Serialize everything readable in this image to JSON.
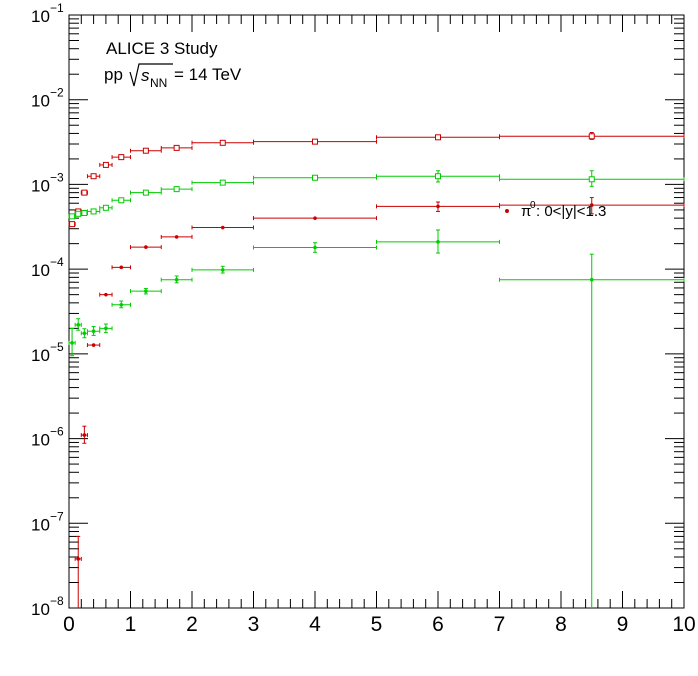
{
  "header": {
    "study": "ALICE 3 Study",
    "energy_prefix": "pp",
    "energy_s": "s",
    "energy_sub": "NN",
    "energy_suffix": "= 14 TeV"
  },
  "legend": {
    "symbol": "π",
    "symbol_sup": "0",
    "text": ":  0<|y|<1.3"
  },
  "chart_data": {
    "type": "scatter",
    "title": "",
    "xlabel": "",
    "ylabel": "",
    "xlim": [
      0,
      10
    ],
    "ylim": [
      1e-08,
      0.1
    ],
    "yscale": "log",
    "grid": false,
    "legend_position": "right-middle",
    "x_ticks": [
      "0",
      "1",
      "2",
      "3",
      "4",
      "5",
      "6",
      "7",
      "8",
      "9",
      "10"
    ],
    "y_ticks": [
      {
        "base": "10",
        "exp": "−1",
        "value": 0.1
      },
      {
        "base": "10",
        "exp": "−2",
        "value": 0.01
      },
      {
        "base": "10",
        "exp": "−3",
        "value": 0.001
      },
      {
        "base": "10",
        "exp": "−4",
        "value": 0.0001
      },
      {
        "base": "10",
        "exp": "−5",
        "value": 1e-05
      },
      {
        "base": "10",
        "exp": "−6",
        "value": 1e-06
      },
      {
        "base": "10",
        "exp": "−7",
        "value": 1e-07
      },
      {
        "base": "10",
        "exp": "−8",
        "value": 1e-08
      }
    ],
    "series": [
      {
        "color": "#cc0000",
        "marker": "open-square",
        "points": [
          {
            "x": 0.05,
            "xlo": 0.0,
            "xhi": 0.1,
            "y": 0.00034
          },
          {
            "x": 0.15,
            "xlo": 0.1,
            "xhi": 0.2,
            "y": 0.00048
          },
          {
            "x": 0.25,
            "xlo": 0.2,
            "xhi": 0.3,
            "y": 0.0008
          },
          {
            "x": 0.4,
            "xlo": 0.3,
            "xhi": 0.5,
            "y": 0.00125
          },
          {
            "x": 0.6,
            "xlo": 0.5,
            "xhi": 0.7,
            "y": 0.0017
          },
          {
            "x": 0.85,
            "xlo": 0.7,
            "xhi": 1.0,
            "y": 0.0021
          },
          {
            "x": 1.25,
            "xlo": 1.0,
            "xhi": 1.5,
            "y": 0.0025
          },
          {
            "x": 1.75,
            "xlo": 1.5,
            "xhi": 2.0,
            "y": 0.0027
          },
          {
            "x": 2.5,
            "xlo": 2.0,
            "xhi": 3.0,
            "y": 0.0031
          },
          {
            "x": 4.0,
            "xlo": 3.0,
            "xhi": 5.0,
            "y": 0.0032
          },
          {
            "x": 6.0,
            "xlo": 5.0,
            "xhi": 7.0,
            "y": 0.0036
          },
          {
            "x": 8.5,
            "xlo": 7.0,
            "xhi": 10.0,
            "y": 0.0037,
            "ylo": 0.0034,
            "yhi": 0.0041
          }
        ]
      },
      {
        "color": "#00cc00",
        "marker": "open-square",
        "points": [
          {
            "x": 0.05,
            "xlo": 0.0,
            "xhi": 0.1,
            "y": 0.00042
          },
          {
            "x": 0.15,
            "xlo": 0.1,
            "xhi": 0.2,
            "y": 0.00045
          },
          {
            "x": 0.25,
            "xlo": 0.2,
            "xhi": 0.3,
            "y": 0.00046
          },
          {
            "x": 0.4,
            "xlo": 0.3,
            "xhi": 0.5,
            "y": 0.00048
          },
          {
            "x": 0.6,
            "xlo": 0.5,
            "xhi": 0.7,
            "y": 0.00053
          },
          {
            "x": 0.85,
            "xlo": 0.7,
            "xhi": 1.0,
            "y": 0.00065
          },
          {
            "x": 1.25,
            "xlo": 1.0,
            "xhi": 1.5,
            "y": 0.0008
          },
          {
            "x": 1.75,
            "xlo": 1.5,
            "xhi": 2.0,
            "y": 0.00088
          },
          {
            "x": 2.5,
            "xlo": 2.0,
            "xhi": 3.0,
            "y": 0.00105
          },
          {
            "x": 4.0,
            "xlo": 3.0,
            "xhi": 5.0,
            "y": 0.0012
          },
          {
            "x": 6.0,
            "xlo": 5.0,
            "xhi": 7.0,
            "y": 0.00125,
            "ylo": 0.00107,
            "yhi": 0.00145
          },
          {
            "x": 8.5,
            "xlo": 7.0,
            "xhi": 10.0,
            "y": 0.00115,
            "ylo": 0.00095,
            "yhi": 0.00145
          }
        ]
      },
      {
        "name": "π0:  0<|y|<1.3",
        "color": "#cc0000",
        "marker": "filled-circle",
        "points": [
          {
            "x": 0.15,
            "xlo": 0.1,
            "xhi": 0.2,
            "y": 3.8e-08,
            "ylo": 1e-08,
            "yhi": 7e-08
          },
          {
            "x": 0.25,
            "xlo": 0.2,
            "xhi": 0.3,
            "y": 1.1e-06,
            "ylo": 8.8e-07,
            "yhi": 1.4e-06
          },
          {
            "x": 0.4,
            "xlo": 0.3,
            "xhi": 0.5,
            "y": 1.27e-05
          },
          {
            "x": 0.6,
            "xlo": 0.5,
            "xhi": 0.7,
            "y": 5e-05
          },
          {
            "x": 0.85,
            "xlo": 0.7,
            "xhi": 1.0,
            "y": 0.000105
          },
          {
            "x": 1.25,
            "xlo": 1.0,
            "xhi": 1.5,
            "y": 0.000182
          },
          {
            "x": 1.75,
            "xlo": 1.5,
            "xhi": 2.0,
            "y": 0.00024
          },
          {
            "x": 2.5,
            "xlo": 2.0,
            "xhi": 3.0,
            "y": 0.00031
          },
          {
            "x": 4.0,
            "xlo": 3.0,
            "xhi": 5.0,
            "y": 0.0004
          },
          {
            "x": 6.0,
            "xlo": 5.0,
            "xhi": 7.0,
            "y": 0.00055,
            "ylo": 0.00048,
            "yhi": 0.00062
          },
          {
            "x": 8.5,
            "xlo": 7.0,
            "xhi": 10.0,
            "y": 0.00057,
            "ylo": 0.00045,
            "yhi": 0.0007
          }
        ]
      },
      {
        "color": "#00cc00",
        "marker": "filled-circle",
        "points": [
          {
            "x": 0.05,
            "xlo": 0.0,
            "xhi": 0.1,
            "y": 1.35e-05,
            "ylo": 9.5e-06,
            "yhi": 2e-05
          },
          {
            "x": 0.15,
            "xlo": 0.1,
            "xhi": 0.2,
            "y": 2.2e-05,
            "ylo": 1.9e-05,
            "yhi": 2.6e-05
          },
          {
            "x": 0.25,
            "xlo": 0.2,
            "xhi": 0.3,
            "y": 1.75e-05,
            "ylo": 1.55e-05,
            "yhi": 1.98e-05
          },
          {
            "x": 0.4,
            "xlo": 0.3,
            "xhi": 0.5,
            "y": 1.85e-05,
            "ylo": 1.65e-05,
            "yhi": 2.1e-05
          },
          {
            "x": 0.6,
            "xlo": 0.5,
            "xhi": 0.7,
            "y": 2e-05,
            "ylo": 1.78e-05,
            "yhi": 2.25e-05
          },
          {
            "x": 0.85,
            "xlo": 0.7,
            "xhi": 1.0,
            "y": 3.8e-05,
            "ylo": 3.5e-05,
            "yhi": 4.2e-05
          },
          {
            "x": 1.25,
            "xlo": 1.0,
            "xhi": 1.5,
            "y": 5.5e-05,
            "ylo": 5.1e-05,
            "yhi": 5.9e-05
          },
          {
            "x": 1.75,
            "xlo": 1.5,
            "xhi": 2.0,
            "y": 7.5e-05,
            "ylo": 6.9e-05,
            "yhi": 8.3e-05
          },
          {
            "x": 2.5,
            "xlo": 2.0,
            "xhi": 3.0,
            "y": 9.8e-05,
            "ylo": 9e-05,
            "yhi": 0.000108
          },
          {
            "x": 4.0,
            "xlo": 3.0,
            "xhi": 5.0,
            "y": 0.00018,
            "ylo": 0.000158,
            "yhi": 0.000205
          },
          {
            "x": 6.0,
            "xlo": 5.0,
            "xhi": 7.0,
            "y": 0.00021,
            "ylo": 0.000155,
            "yhi": 0.00029
          },
          {
            "x": 8.5,
            "xlo": 7.0,
            "xhi": 10.0,
            "y": 7.5e-05,
            "ylo": 1e-08,
            "yhi": 0.00015
          }
        ]
      }
    ]
  }
}
